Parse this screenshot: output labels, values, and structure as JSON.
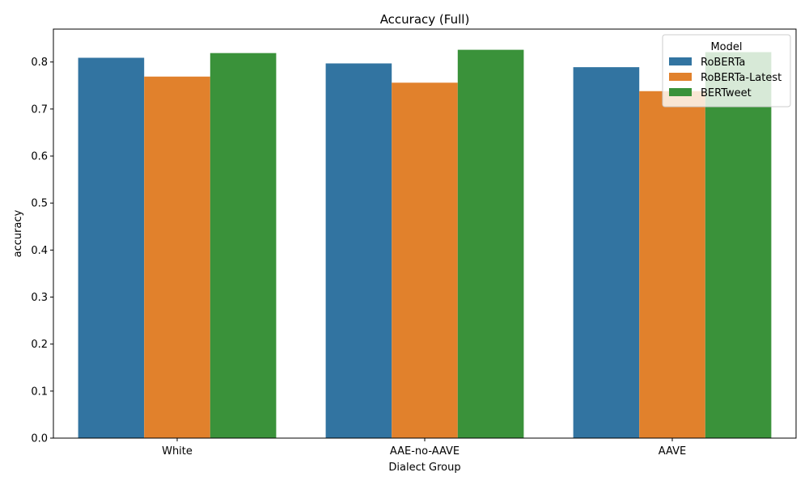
{
  "chart_data": {
    "type": "bar",
    "title": "Accuracy (Full)",
    "xlabel": "Dialect Group",
    "ylabel": "accuracy",
    "categories": [
      "White",
      "AAE-no-AAVE",
      "AAVE"
    ],
    "series": [
      {
        "name": "RoBERTa",
        "color": "#3274a1",
        "values": [
          0.809,
          0.797,
          0.789
        ]
      },
      {
        "name": "RoBERTa-Latest",
        "color": "#e1812c",
        "values": [
          0.769,
          0.756,
          0.738
        ]
      },
      {
        "name": "BERTweet",
        "color": "#3a923a",
        "values": [
          0.819,
          0.826,
          0.821
        ]
      }
    ],
    "ylim": [
      0,
      0.87
    ],
    "yticks": [
      "0.0",
      "0.1",
      "0.2",
      "0.3",
      "0.4",
      "0.5",
      "0.6",
      "0.7",
      "0.8"
    ],
    "grid": false,
    "legend": {
      "title": "Model",
      "placement": "top-right"
    }
  }
}
